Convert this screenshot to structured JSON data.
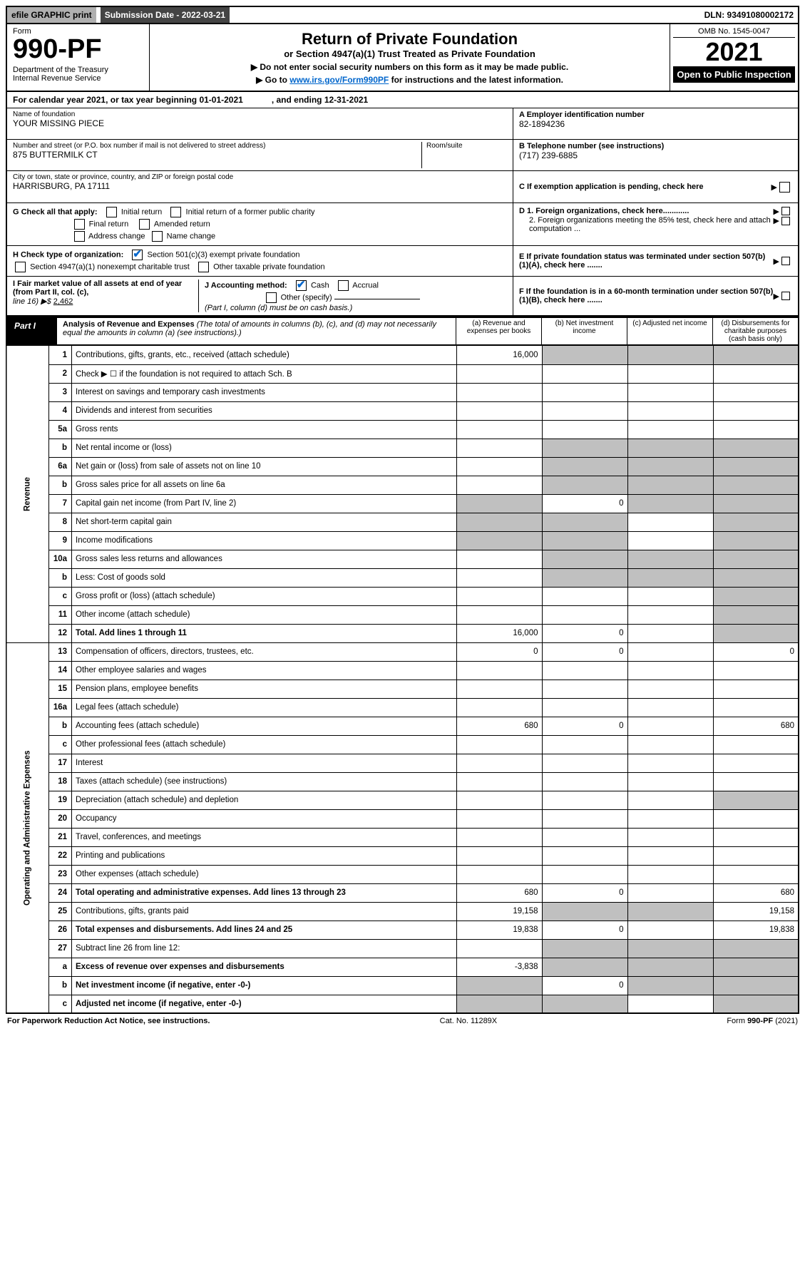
{
  "topbar": {
    "efile": "efile GRAPHIC print",
    "subdate_label": "Submission Date - 2022-03-21",
    "dln": "DLN: 93491080002172"
  },
  "header": {
    "form": "Form",
    "form_no": "990-PF",
    "dept": "Department of the Treasury\nInternal Revenue Service",
    "title": "Return of Private Foundation",
    "subtitle": "or Section 4947(a)(1) Trust Treated as Private Foundation",
    "note1": "▶ Do not enter social security numbers on this form as it may be made public.",
    "note2_pre": "▶ Go to ",
    "note2_link": "www.irs.gov/Form990PF",
    "note2_post": " for instructions and the latest information.",
    "omb": "OMB No. 1545-0047",
    "year": "2021",
    "otp": "Open to Public Inspection"
  },
  "cal": {
    "l": "For calendar year 2021, or tax year beginning 01-01-2021",
    "r": ", and ending 12-31-2021"
  },
  "meta": {
    "name_lbl": "Name of foundation",
    "name": "YOUR MISSING PIECE",
    "addr_lbl": "Number and street (or P.O. box number if mail is not delivered to street address)",
    "addr": "875 BUTTERMILK CT",
    "room_lbl": "Room/suite",
    "city_lbl": "City or town, state or province, country, and ZIP or foreign postal code",
    "city": "HARRISBURG, PA  17111",
    "a_lbl": "A Employer identification number",
    "a_val": "82-1894236",
    "b_lbl": "B Telephone number (see instructions)",
    "b_val": "(717) 239-6885",
    "c_lbl": "C If exemption application is pending, check here"
  },
  "g": {
    "label": "G Check all that apply:",
    "initial": "Initial return",
    "initial_former": "Initial return of a former public charity",
    "final": "Final return",
    "amended": "Amended return",
    "addr_chg": "Address change",
    "name_chg": "Name change"
  },
  "h": {
    "label": "H Check type of organization:",
    "c3": "Section 501(c)(3) exempt private foundation",
    "trust": "Section 4947(a)(1) nonexempt charitable trust",
    "other": "Other taxable private foundation"
  },
  "d": {
    "d1": "D 1. Foreign organizations, check here............",
    "d2": "2. Foreign organizations meeting the 85% test, check here and attach computation ..."
  },
  "e": "E  If private foundation status was terminated under section 507(b)(1)(A), check here .......",
  "i": {
    "label": "I Fair market value of all assets at end of year (from Part II, col. (c),",
    "line": "line 16) ▶$ ",
    "val": "2,462"
  },
  "j": {
    "label": "J Accounting method:",
    "cash": "Cash",
    "accrual": "Accrual",
    "other": "Other (specify)",
    "note": "(Part I, column (d) must be on cash basis.)"
  },
  "f": "F  If the foundation is in a 60-month termination under section 507(b)(1)(B), check here .......",
  "part1": {
    "tag": "Part I",
    "title": "Analysis of Revenue and Expenses",
    "desc": " (The total of amounts in columns (b), (c), and (d) may not necessarily equal the amounts in column (a) (see instructions).)",
    "colA": "(a) Revenue and expenses per books",
    "colB": "(b) Net investment income",
    "colC": "(c) Adjusted net income",
    "colD": "(d) Disbursements for charitable purposes (cash basis only)"
  },
  "side": {
    "rev": "Revenue",
    "oae": "Operating and Administrative Expenses"
  },
  "rows": [
    {
      "n": "1",
      "d": "Contributions, gifts, grants, etc., received (attach schedule)",
      "a": "16,000",
      "grey_bcd": true
    },
    {
      "n": "2",
      "d": "Check ▶ ☐ if the foundation is not required to attach Sch. B",
      "span": true
    },
    {
      "n": "3",
      "d": "Interest on savings and temporary cash investments"
    },
    {
      "n": "4",
      "d": "Dividends and interest from securities"
    },
    {
      "n": "5a",
      "d": "Gross rents"
    },
    {
      "n": "b",
      "d": "Net rental income or (loss)",
      "grey_bcd": true
    },
    {
      "n": "6a",
      "d": "Net gain or (loss) from sale of assets not on line 10",
      "grey_bcd": true
    },
    {
      "n": "b",
      "d": "Gross sales price for all assets on line 6a",
      "grey_bcd": true
    },
    {
      "n": "7",
      "d": "Capital gain net income (from Part IV, line 2)",
      "b": "0",
      "grey_a": true,
      "grey_cd": true
    },
    {
      "n": "8",
      "d": "Net short-term capital gain",
      "grey_ab": true,
      "grey_d": true
    },
    {
      "n": "9",
      "d": "Income modifications",
      "grey_ab": true,
      "grey_d": true
    },
    {
      "n": "10a",
      "d": "Gross sales less returns and allowances",
      "grey_bcd": true
    },
    {
      "n": "b",
      "d": "Less: Cost of goods sold",
      "grey_bcd": true
    },
    {
      "n": "c",
      "d": "Gross profit or (loss) (attach schedule)",
      "grey_d": true
    },
    {
      "n": "11",
      "d": "Other income (attach schedule)",
      "grey_d": true
    },
    {
      "n": "12",
      "d": "Total. Add lines 1 through 11",
      "bold": true,
      "a": "16,000",
      "b": "0",
      "grey_d": true
    }
  ],
  "rows2": [
    {
      "n": "13",
      "d": "Compensation of officers, directors, trustees, etc.",
      "a": "0",
      "b": "0",
      "dcol": "0"
    },
    {
      "n": "14",
      "d": "Other employee salaries and wages"
    },
    {
      "n": "15",
      "d": "Pension plans, employee benefits"
    },
    {
      "n": "16a",
      "d": "Legal fees (attach schedule)"
    },
    {
      "n": "b",
      "d": "Accounting fees (attach schedule)",
      "a": "680",
      "b": "0",
      "dcol": "680"
    },
    {
      "n": "c",
      "d": "Other professional fees (attach schedule)"
    },
    {
      "n": "17",
      "d": "Interest"
    },
    {
      "n": "18",
      "d": "Taxes (attach schedule) (see instructions)"
    },
    {
      "n": "19",
      "d": "Depreciation (attach schedule) and depletion",
      "grey_d": true
    },
    {
      "n": "20",
      "d": "Occupancy"
    },
    {
      "n": "21",
      "d": "Travel, conferences, and meetings"
    },
    {
      "n": "22",
      "d": "Printing and publications"
    },
    {
      "n": "23",
      "d": "Other expenses (attach schedule)"
    },
    {
      "n": "24",
      "d": "Total operating and administrative expenses. Add lines 13 through 23",
      "bold": true,
      "a": "680",
      "b": "0",
      "dcol": "680"
    },
    {
      "n": "25",
      "d": "Contributions, gifts, grants paid",
      "a": "19,158",
      "grey_bc": true,
      "dcol": "19,158"
    },
    {
      "n": "26",
      "d": "Total expenses and disbursements. Add lines 24 and 25",
      "bold": true,
      "a": "19,838",
      "b": "0",
      "dcol": "19,838"
    },
    {
      "n": "27",
      "d": "Subtract line 26 from line 12:",
      "grey_bcd": true
    },
    {
      "n": "a",
      "d": "Excess of revenue over expenses and disbursements",
      "bold": true,
      "a": "-3,838",
      "grey_bcd": true
    },
    {
      "n": "b",
      "d": "Net investment income (if negative, enter -0-)",
      "bold": true,
      "grey_a": true,
      "b": "0",
      "grey_cd": true
    },
    {
      "n": "c",
      "d": "Adjusted net income (if negative, enter -0-)",
      "bold": true,
      "grey_ab": true,
      "grey_d": true
    }
  ],
  "footer": {
    "l": "For Paperwork Reduction Act Notice, see instructions.",
    "m": "Cat. No. 11289X",
    "r": "Form 990-PF (2021)"
  }
}
